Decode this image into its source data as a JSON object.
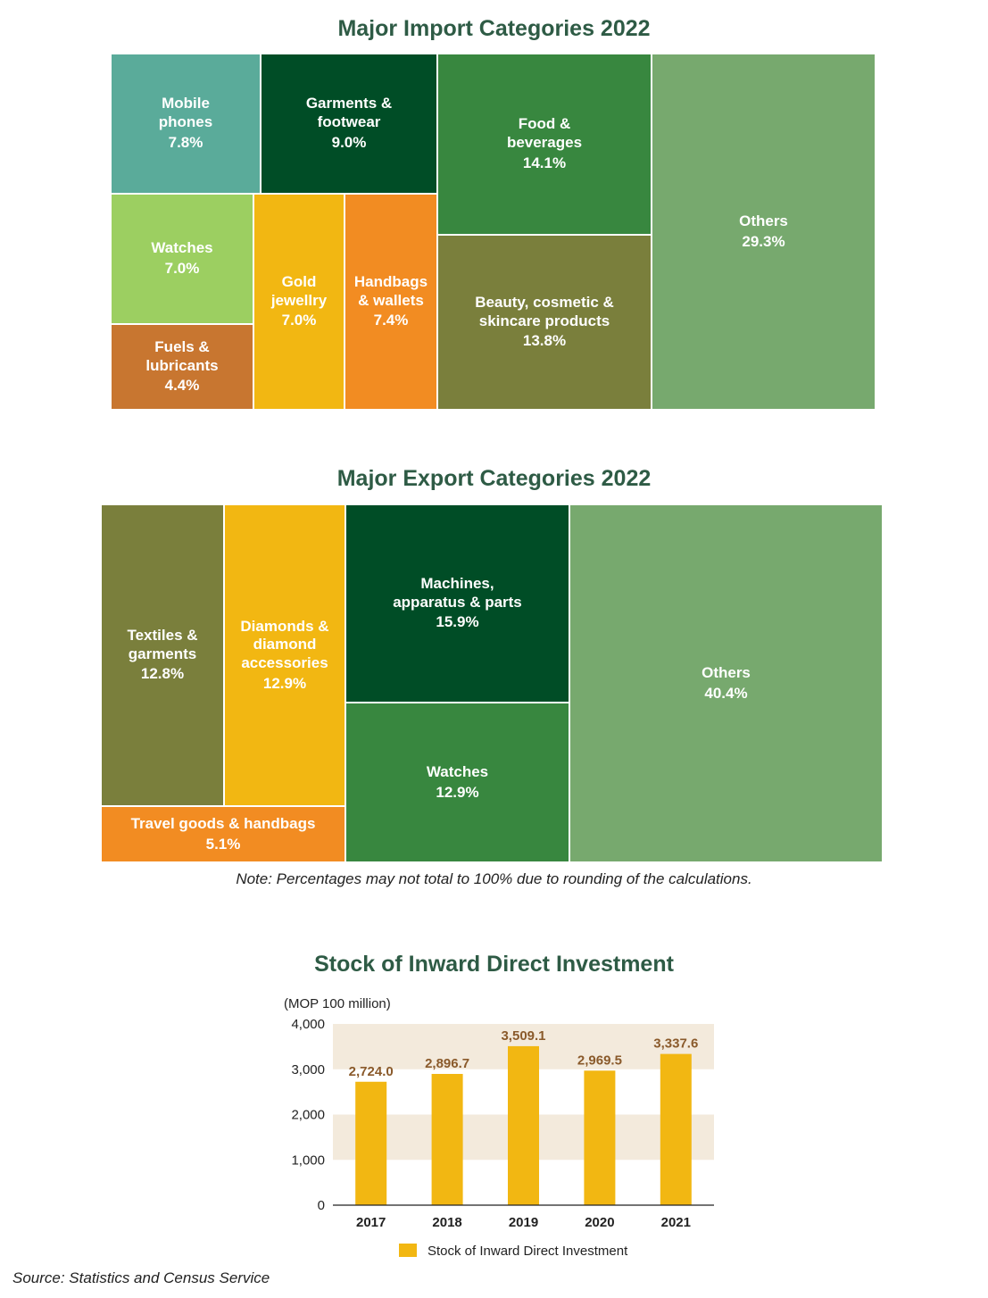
{
  "colors": {
    "title": "#2e5b45",
    "teal": "#5aab9a",
    "dark_green": "#004d26",
    "mid_green": "#38873f",
    "olive": "#7a7f3c",
    "light_green": "#77a96e",
    "lime": "#9ccf61",
    "amber": "#f2b712",
    "orange": "#f28c22",
    "burnt_orange": "#c87630",
    "bar": "#f2b712",
    "band": "#f3eadc",
    "value_label": "#8a5a2b"
  },
  "imports": {
    "title": "Major Import Categories 2022",
    "chart_data": {
      "type": "treemap",
      "title": "Major Import Categories 2022",
      "items": [
        {
          "label": "Mobile\nphones",
          "value": 7.8,
          "display": "7.8%",
          "color": "teal"
        },
        {
          "label": "Garments &\nfootwear",
          "value": 9.0,
          "display": "9.0%",
          "color": "dark_green"
        },
        {
          "label": "Watches",
          "value": 7.0,
          "display": "7.0%",
          "color": "lime"
        },
        {
          "label": "Fuels &\nlubricants",
          "value": 4.4,
          "display": "4.4%",
          "color": "burnt_orange"
        },
        {
          "label": "Gold\njewellry",
          "value": 7.0,
          "display": "7.0%",
          "color": "amber"
        },
        {
          "label": "Handbags\n& wallets",
          "value": 7.4,
          "display": "7.4%",
          "color": "orange"
        },
        {
          "label": "Food &\nbeverages",
          "value": 14.1,
          "display": "14.1%",
          "color": "mid_green"
        },
        {
          "label": "Beauty, cosmetic &\nskincare products",
          "value": 13.8,
          "display": "13.8%",
          "color": "olive"
        },
        {
          "label": "Others",
          "value": 29.3,
          "display": "29.3%",
          "color": "light_green"
        }
      ]
    }
  },
  "exports": {
    "title": "Major Export Categories 2022",
    "chart_data": {
      "type": "treemap",
      "title": "Major Export Categories 2022",
      "items": [
        {
          "label": "Textiles &\ngarments",
          "value": 12.8,
          "display": "12.8%",
          "color": "olive"
        },
        {
          "label": "Diamonds &\ndiamond\naccessories",
          "value": 12.9,
          "display": "12.9%",
          "color": "amber"
        },
        {
          "label": "Travel goods & handbags",
          "value": 5.1,
          "display": "5.1%",
          "color": "orange"
        },
        {
          "label": "Machines,\napparatus & parts",
          "value": 15.9,
          "display": "15.9%",
          "color": "dark_green"
        },
        {
          "label": "Watches",
          "value": 12.9,
          "display": "12.9%",
          "color": "mid_green"
        },
        {
          "label": "Others",
          "value": 40.4,
          "display": "40.4%",
          "color": "light_green"
        }
      ]
    },
    "note": "Note: Percentages may not total to 100% due to rounding of the calculations."
  },
  "investment": {
    "title": "Stock of Inward Direct Investment",
    "unit": "(MOP 100 million)",
    "chart_data": {
      "type": "bar",
      "title": "Stock of Inward Direct Investment",
      "ylabel": "(MOP 100 million)",
      "categories": [
        "2017",
        "2018",
        "2019",
        "2020",
        "2021"
      ],
      "series": [
        {
          "name": "Stock of Inward Direct Investment",
          "values": [
            2724.0,
            2896.7,
            3509.1,
            2969.5,
            3337.6
          ]
        }
      ],
      "value_labels": [
        "2,724.0",
        "2,896.7",
        "3,509.1",
        "2,969.5",
        "3,337.6"
      ],
      "ylim": [
        0,
        4000
      ],
      "yticks": [
        0,
        1000,
        2000,
        3000,
        4000
      ],
      "ytick_labels": [
        "0",
        "1,000",
        "2,000",
        "3,000",
        "4,000"
      ],
      "grid": "alternating horizontal bands",
      "legend": "bottom-center"
    }
  },
  "source": "Source: Statistics and Census Service"
}
